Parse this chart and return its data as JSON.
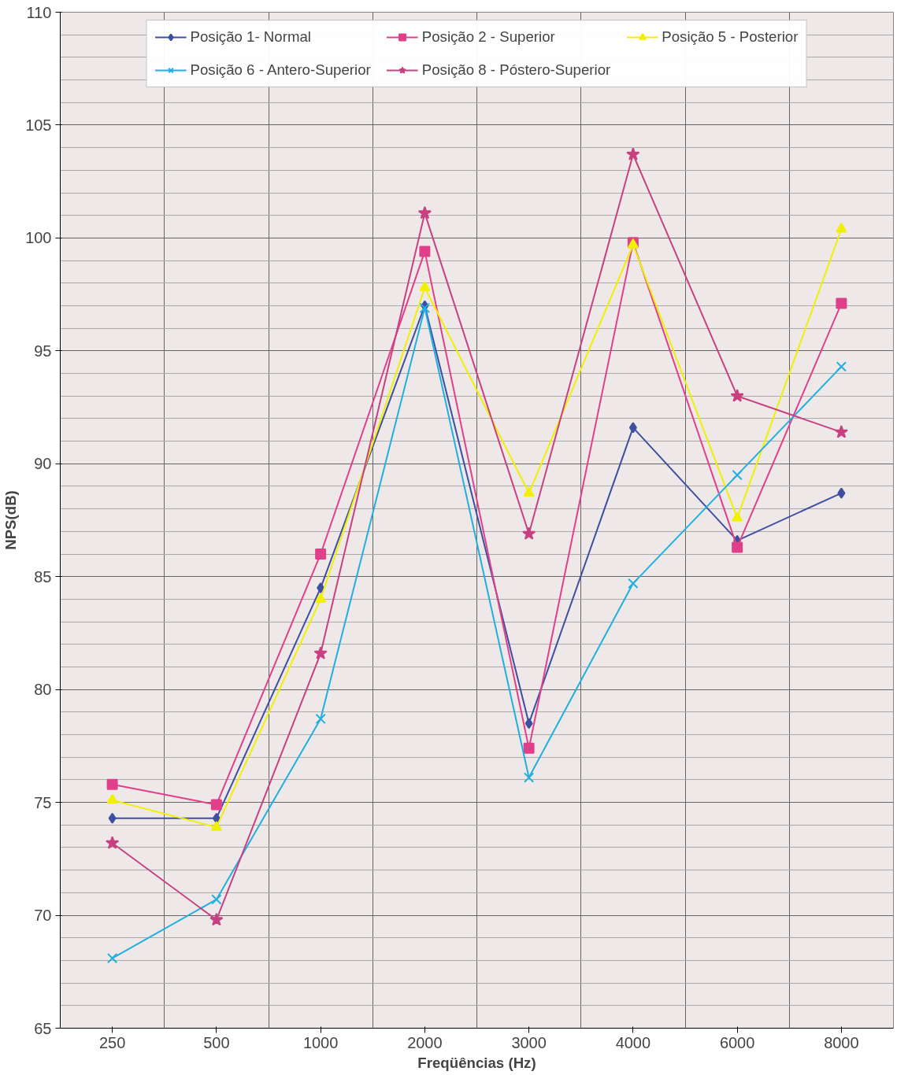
{
  "chart_data": {
    "type": "line",
    "xlabel": "Freqüências (Hz)",
    "ylabel": "NPS(dB)",
    "categories": [
      "250",
      "500",
      "1000",
      "2000",
      "3000",
      "4000",
      "6000",
      "8000"
    ],
    "series": [
      {
        "name": "Posição 1- Normal",
        "color": "#3f4fa0",
        "marker": "diamond",
        "values": [
          74.3,
          74.3,
          84.5,
          97.0,
          78.5,
          91.6,
          86.6,
          88.7
        ]
      },
      {
        "name": "Posição 2 - Superior",
        "color": "#e0408a",
        "marker": "square",
        "values": [
          75.8,
          74.9,
          86.0,
          99.4,
          77.4,
          99.8,
          86.3,
          97.1
        ]
      },
      {
        "name": "Posição 5 - Posterior",
        "color": "#f0f000",
        "marker": "triangle",
        "values": [
          75.1,
          73.9,
          84.0,
          97.8,
          88.7,
          99.7,
          87.6,
          100.4
        ]
      },
      {
        "name": "Posição 6 - Antero-Superior",
        "color": "#1fb0e0",
        "marker": "cross",
        "values": [
          68.1,
          70.7,
          78.7,
          96.9,
          76.1,
          84.7,
          89.5,
          94.3
        ]
      },
      {
        "name": "Posição 8 - Póstero-Superior",
        "color": "#c84080",
        "marker": "star",
        "values": [
          73.2,
          69.8,
          81.6,
          101.1,
          86.9,
          103.7,
          93.0,
          91.4
        ]
      }
    ],
    "ylim": [
      65,
      110
    ],
    "yticks": [
      65,
      70,
      75,
      80,
      85,
      90,
      95,
      100,
      105,
      110
    ],
    "grid": true,
    "legend": "top",
    "line_style": "solid"
  }
}
